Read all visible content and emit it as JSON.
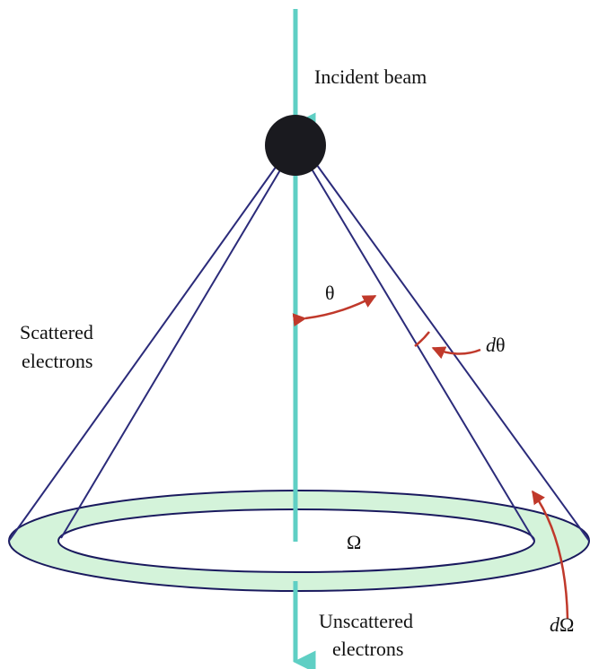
{
  "labels": {
    "incident": "Incident beam",
    "theta": "θ",
    "scattered": [
      "Scattered",
      "electrons"
    ],
    "dtheta_d": "d",
    "dtheta_t": "θ",
    "omega": "Ω",
    "unscattered": [
      "Unscattered",
      "electrons"
    ],
    "domega_d": "d",
    "domega_o": "Ω"
  }
}
